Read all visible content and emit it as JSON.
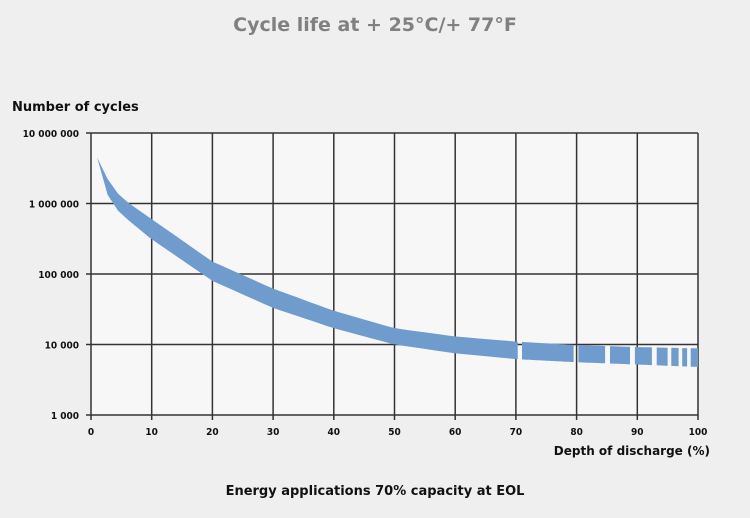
{
  "chart_data": {
    "type": "area",
    "title": "Cycle life at + 25°C/+ 77°F",
    "ylabel": "Number of cycles",
    "xlabel": "Depth of discharge (%)",
    "caption": "Energy applications 70% capacity at EOL",
    "xlim": [
      0,
      100
    ],
    "ylim": [
      1000,
      10000000
    ],
    "yscale": "log",
    "grid": true,
    "x_ticks": [
      "0",
      "10",
      "20",
      "30",
      "40",
      "50",
      "60",
      "70",
      "80",
      "90",
      "100"
    ],
    "y_ticks": [
      "1 000",
      "10 000",
      "100 000",
      "1 000 000",
      "10 000 000"
    ],
    "band_color": "#6f9bcd",
    "band": {
      "x": [
        1,
        3,
        5,
        10,
        20,
        30,
        40,
        50,
        60,
        70,
        80,
        90,
        100
      ],
      "upper": [
        4500000,
        2000000,
        1200000,
        600000,
        150000,
        62000,
        30000,
        17000,
        13000,
        11000,
        9800,
        9200,
        8800
      ],
      "lower": [
        4500000,
        1100000,
        700000,
        310000,
        80000,
        33000,
        17000,
        10000,
        7500,
        6200,
        5600,
        5200,
        4800
      ]
    },
    "band_segments": [
      [
        0,
        70.3
      ],
      [
        71,
        79.5
      ],
      [
        80.3,
        84.7
      ],
      [
        85.5,
        88.8
      ],
      [
        89.6,
        92.4
      ],
      [
        93.2,
        95
      ],
      [
        95.6,
        96.8
      ],
      [
        97.4,
        98.2
      ],
      [
        98.8,
        100
      ]
    ]
  }
}
